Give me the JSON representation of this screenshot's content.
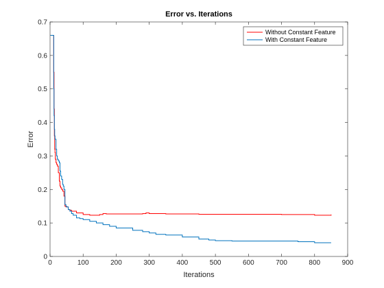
{
  "chart_data": {
    "type": "line",
    "title": "Error vs. Iterations",
    "xlabel": "Iterations",
    "ylabel": "Error",
    "xlim": [
      0,
      900
    ],
    "ylim": [
      0,
      0.7
    ],
    "xticks": [
      0,
      100,
      200,
      300,
      400,
      500,
      600,
      700,
      800,
      900
    ],
    "yticks": [
      0,
      0.1,
      0.2,
      0.3,
      0.4,
      0.5,
      0.6,
      0.7
    ],
    "xtick_labels": [
      "0",
      "100",
      "200",
      "300",
      "400",
      "500",
      "600",
      "700",
      "800",
      "900"
    ],
    "ytick_labels": [
      "0",
      "0.1",
      "0.2",
      "0.3",
      "0.4",
      "0.5",
      "0.6",
      "0.7"
    ],
    "grid": false,
    "legend_position": "top-right",
    "series": [
      {
        "name": "Without Constant Feature",
        "color": "#ff0000",
        "x": [
          1,
          10,
          11,
          12,
          13,
          14,
          15,
          16,
          18,
          20,
          22,
          25,
          28,
          30,
          32,
          35,
          38,
          40,
          42,
          45,
          48,
          50,
          55,
          60,
          65,
          70,
          80,
          90,
          100,
          110,
          120,
          140,
          150,
          160,
          170,
          200,
          250,
          280,
          290,
          300,
          350,
          400,
          450,
          500,
          600,
          700,
          800,
          850
        ],
        "y": [
          0.66,
          0.66,
          0.55,
          0.44,
          0.36,
          0.32,
          0.31,
          0.29,
          0.28,
          0.275,
          0.27,
          0.25,
          0.225,
          0.21,
          0.205,
          0.2,
          0.195,
          0.195,
          0.18,
          0.15,
          0.148,
          0.148,
          0.14,
          0.138,
          0.135,
          0.135,
          0.13,
          0.13,
          0.125,
          0.125,
          0.123,
          0.123,
          0.125,
          0.128,
          0.127,
          0.127,
          0.127,
          0.128,
          0.13,
          0.128,
          0.127,
          0.127,
          0.126,
          0.126,
          0.126,
          0.125,
          0.123,
          0.125
        ]
      },
      {
        "name": "With Constant Feature",
        "color": "#0072bd",
        "x": [
          1,
          10,
          11,
          12,
          13,
          14,
          15,
          16,
          18,
          20,
          22,
          25,
          28,
          30,
          32,
          35,
          38,
          40,
          42,
          45,
          48,
          50,
          55,
          60,
          65,
          70,
          80,
          90,
          100,
          120,
          140,
          160,
          180,
          200,
          250,
          280,
          300,
          320,
          350,
          400,
          450,
          480,
          500,
          550,
          600,
          650,
          700,
          750,
          800,
          850
        ],
        "y": [
          0.66,
          0.66,
          0.5,
          0.42,
          0.38,
          0.36,
          0.35,
          0.35,
          0.32,
          0.3,
          0.29,
          0.285,
          0.28,
          0.255,
          0.24,
          0.23,
          0.215,
          0.21,
          0.2,
          0.155,
          0.15,
          0.148,
          0.14,
          0.135,
          0.128,
          0.123,
          0.115,
          0.113,
          0.11,
          0.105,
          0.1,
          0.095,
          0.09,
          0.085,
          0.078,
          0.074,
          0.07,
          0.066,
          0.064,
          0.058,
          0.052,
          0.049,
          0.047,
          0.046,
          0.046,
          0.046,
          0.046,
          0.044,
          0.041,
          0.041
        ]
      }
    ]
  }
}
